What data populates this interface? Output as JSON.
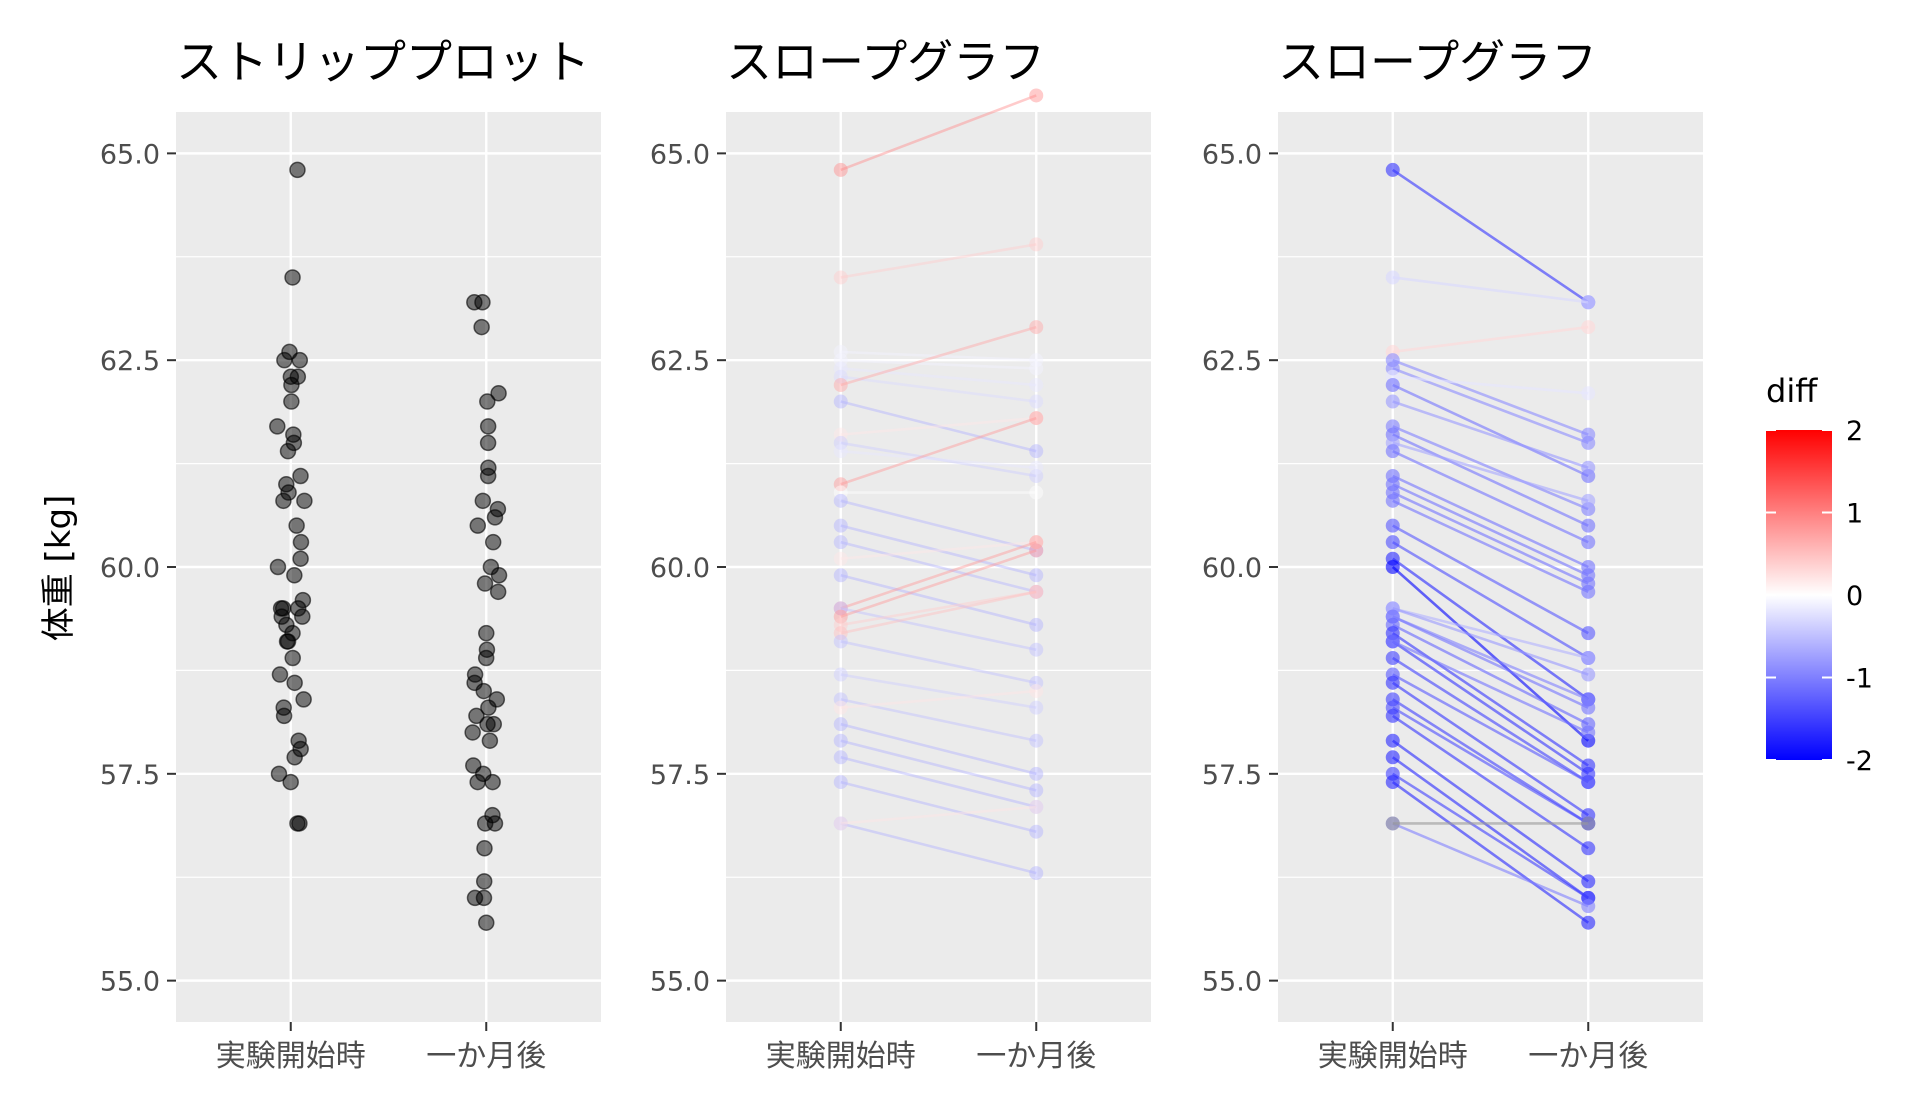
{
  "chart_data": [
    {
      "type": "scatter",
      "title": "ストリッププロット",
      "ylabel": "体重 [kg]",
      "categories": [
        "実験開始時",
        "一か月後"
      ],
      "ylim": [
        54.5,
        65.5
      ],
      "yticks": [
        "55.0",
        "57.5",
        "60.0",
        "62.5",
        "65.0"
      ],
      "point_color": "#000000",
      "point_alpha": 0.5,
      "series": [
        {
          "category": "実験開始時",
          "values": [
            64.8,
            63.5,
            62.6,
            62.5,
            62.5,
            62.3,
            62.3,
            62.2,
            62.0,
            61.7,
            61.6,
            61.5,
            61.4,
            61.1,
            61.0,
            60.9,
            60.8,
            60.8,
            60.5,
            60.3,
            60.1,
            60.0,
            59.9,
            59.6,
            59.5,
            59.5,
            59.5,
            59.4,
            59.4,
            59.3,
            59.2,
            59.1,
            59.1,
            58.9,
            58.7,
            58.6,
            58.4,
            58.3,
            58.2,
            57.9,
            57.8,
            57.7,
            57.5,
            57.4,
            56.9,
            56.9
          ]
        },
        {
          "category": "一か月後",
          "values": [
            63.2,
            63.2,
            62.9,
            62.1,
            62.0,
            61.7,
            61.5,
            61.2,
            61.1,
            60.8,
            60.7,
            60.6,
            60.5,
            60.3,
            60.0,
            59.9,
            59.8,
            59.7,
            59.2,
            59.0,
            58.9,
            58.7,
            58.6,
            58.5,
            58.4,
            58.3,
            58.2,
            58.1,
            58.1,
            58.0,
            57.9,
            57.6,
            57.5,
            57.4,
            57.4,
            57.0,
            56.9,
            56.9,
            56.6,
            56.2,
            56.0,
            56.0,
            55.7
          ]
        }
      ]
    },
    {
      "type": "line",
      "title": "スロープグラフ",
      "categories": [
        "実験開始時",
        "一か月後"
      ],
      "ylim": [
        54.5,
        65.5
      ],
      "yticks": [
        "55.0",
        "57.5",
        "60.0",
        "62.5",
        "65.0"
      ],
      "color_scale": "diff",
      "alpha": 0.45,
      "pairs": [
        [
          64.8,
          65.7
        ],
        [
          63.5,
          63.9
        ],
        [
          62.6,
          62.5
        ],
        [
          62.5,
          62.4
        ],
        [
          62.4,
          62.2
        ],
        [
          62.3,
          62.0
        ],
        [
          62.2,
          62.9
        ],
        [
          62.0,
          61.4
        ],
        [
          61.6,
          61.8
        ],
        [
          61.5,
          61.1
        ],
        [
          61.4,
          61.2
        ],
        [
          61.0,
          61.8
        ],
        [
          60.9,
          60.9
        ],
        [
          60.8,
          60.2
        ],
        [
          60.5,
          59.9
        ],
        [
          60.3,
          59.7
        ],
        [
          60.1,
          60.3
        ],
        [
          59.9,
          59.3
        ],
        [
          59.5,
          60.3
        ],
        [
          59.5,
          59.0
        ],
        [
          59.4,
          60.2
        ],
        [
          59.3,
          59.7
        ],
        [
          59.2,
          59.7
        ],
        [
          59.1,
          58.6
        ],
        [
          58.7,
          58.3
        ],
        [
          58.4,
          57.9
        ],
        [
          58.3,
          58.5
        ],
        [
          58.1,
          57.5
        ],
        [
          57.9,
          57.3
        ],
        [
          57.7,
          57.1
        ],
        [
          57.4,
          56.8
        ],
        [
          56.9,
          56.3
        ],
        [
          56.9,
          57.1
        ]
      ]
    },
    {
      "type": "line",
      "title": "スロープグラフ",
      "categories": [
        "実験開始時",
        "一か月後"
      ],
      "ylim": [
        54.5,
        65.5
      ],
      "yticks": [
        "55.0",
        "57.5",
        "60.0",
        "62.5",
        "65.0"
      ],
      "color_scale": "diff",
      "alpha": 0.6,
      "pairs": [
        [
          64.8,
          63.2
        ],
        [
          63.5,
          63.2
        ],
        [
          62.6,
          62.9
        ],
        [
          62.5,
          61.6
        ],
        [
          62.4,
          61.5
        ],
        [
          62.3,
          62.1
        ],
        [
          62.2,
          61.1
        ],
        [
          62.0,
          61.2
        ],
        [
          61.7,
          60.7
        ],
        [
          61.6,
          60.5
        ],
        [
          61.5,
          60.8
        ],
        [
          61.4,
          60.3
        ],
        [
          61.1,
          60.0
        ],
        [
          61.0,
          59.9
        ],
        [
          60.9,
          59.8
        ],
        [
          60.8,
          59.7
        ],
        [
          60.5,
          59.2
        ],
        [
          60.3,
          58.9
        ],
        [
          60.1,
          58.4
        ],
        [
          60.0,
          57.9
        ],
        [
          59.5,
          58.9
        ],
        [
          59.5,
          58.7
        ],
        [
          59.4,
          58.3
        ],
        [
          59.4,
          58.4
        ],
        [
          59.3,
          58.1
        ],
        [
          59.2,
          57.6
        ],
        [
          59.1,
          57.5
        ],
        [
          59.1,
          58.0
        ],
        [
          58.9,
          57.4
        ],
        [
          58.7,
          57.4
        ],
        [
          58.6,
          57.0
        ],
        [
          58.4,
          56.9
        ],
        [
          58.3,
          56.9
        ],
        [
          58.2,
          56.6
        ],
        [
          57.9,
          56.2
        ],
        [
          57.7,
          56.0
        ],
        [
          57.5,
          56.0
        ],
        [
          57.4,
          55.7
        ],
        [
          56.9,
          55.9
        ],
        [
          56.9,
          56.9
        ]
      ]
    }
  ],
  "legend": {
    "title": "diff",
    "ticks": [
      "2",
      "1",
      "0",
      "-1",
      "-2"
    ],
    "low_color": "#0000ff",
    "mid_color": "#ffffff",
    "high_color": "#ff0000"
  },
  "panel_background": "#ebebeb",
  "grid_color": "#ffffff"
}
